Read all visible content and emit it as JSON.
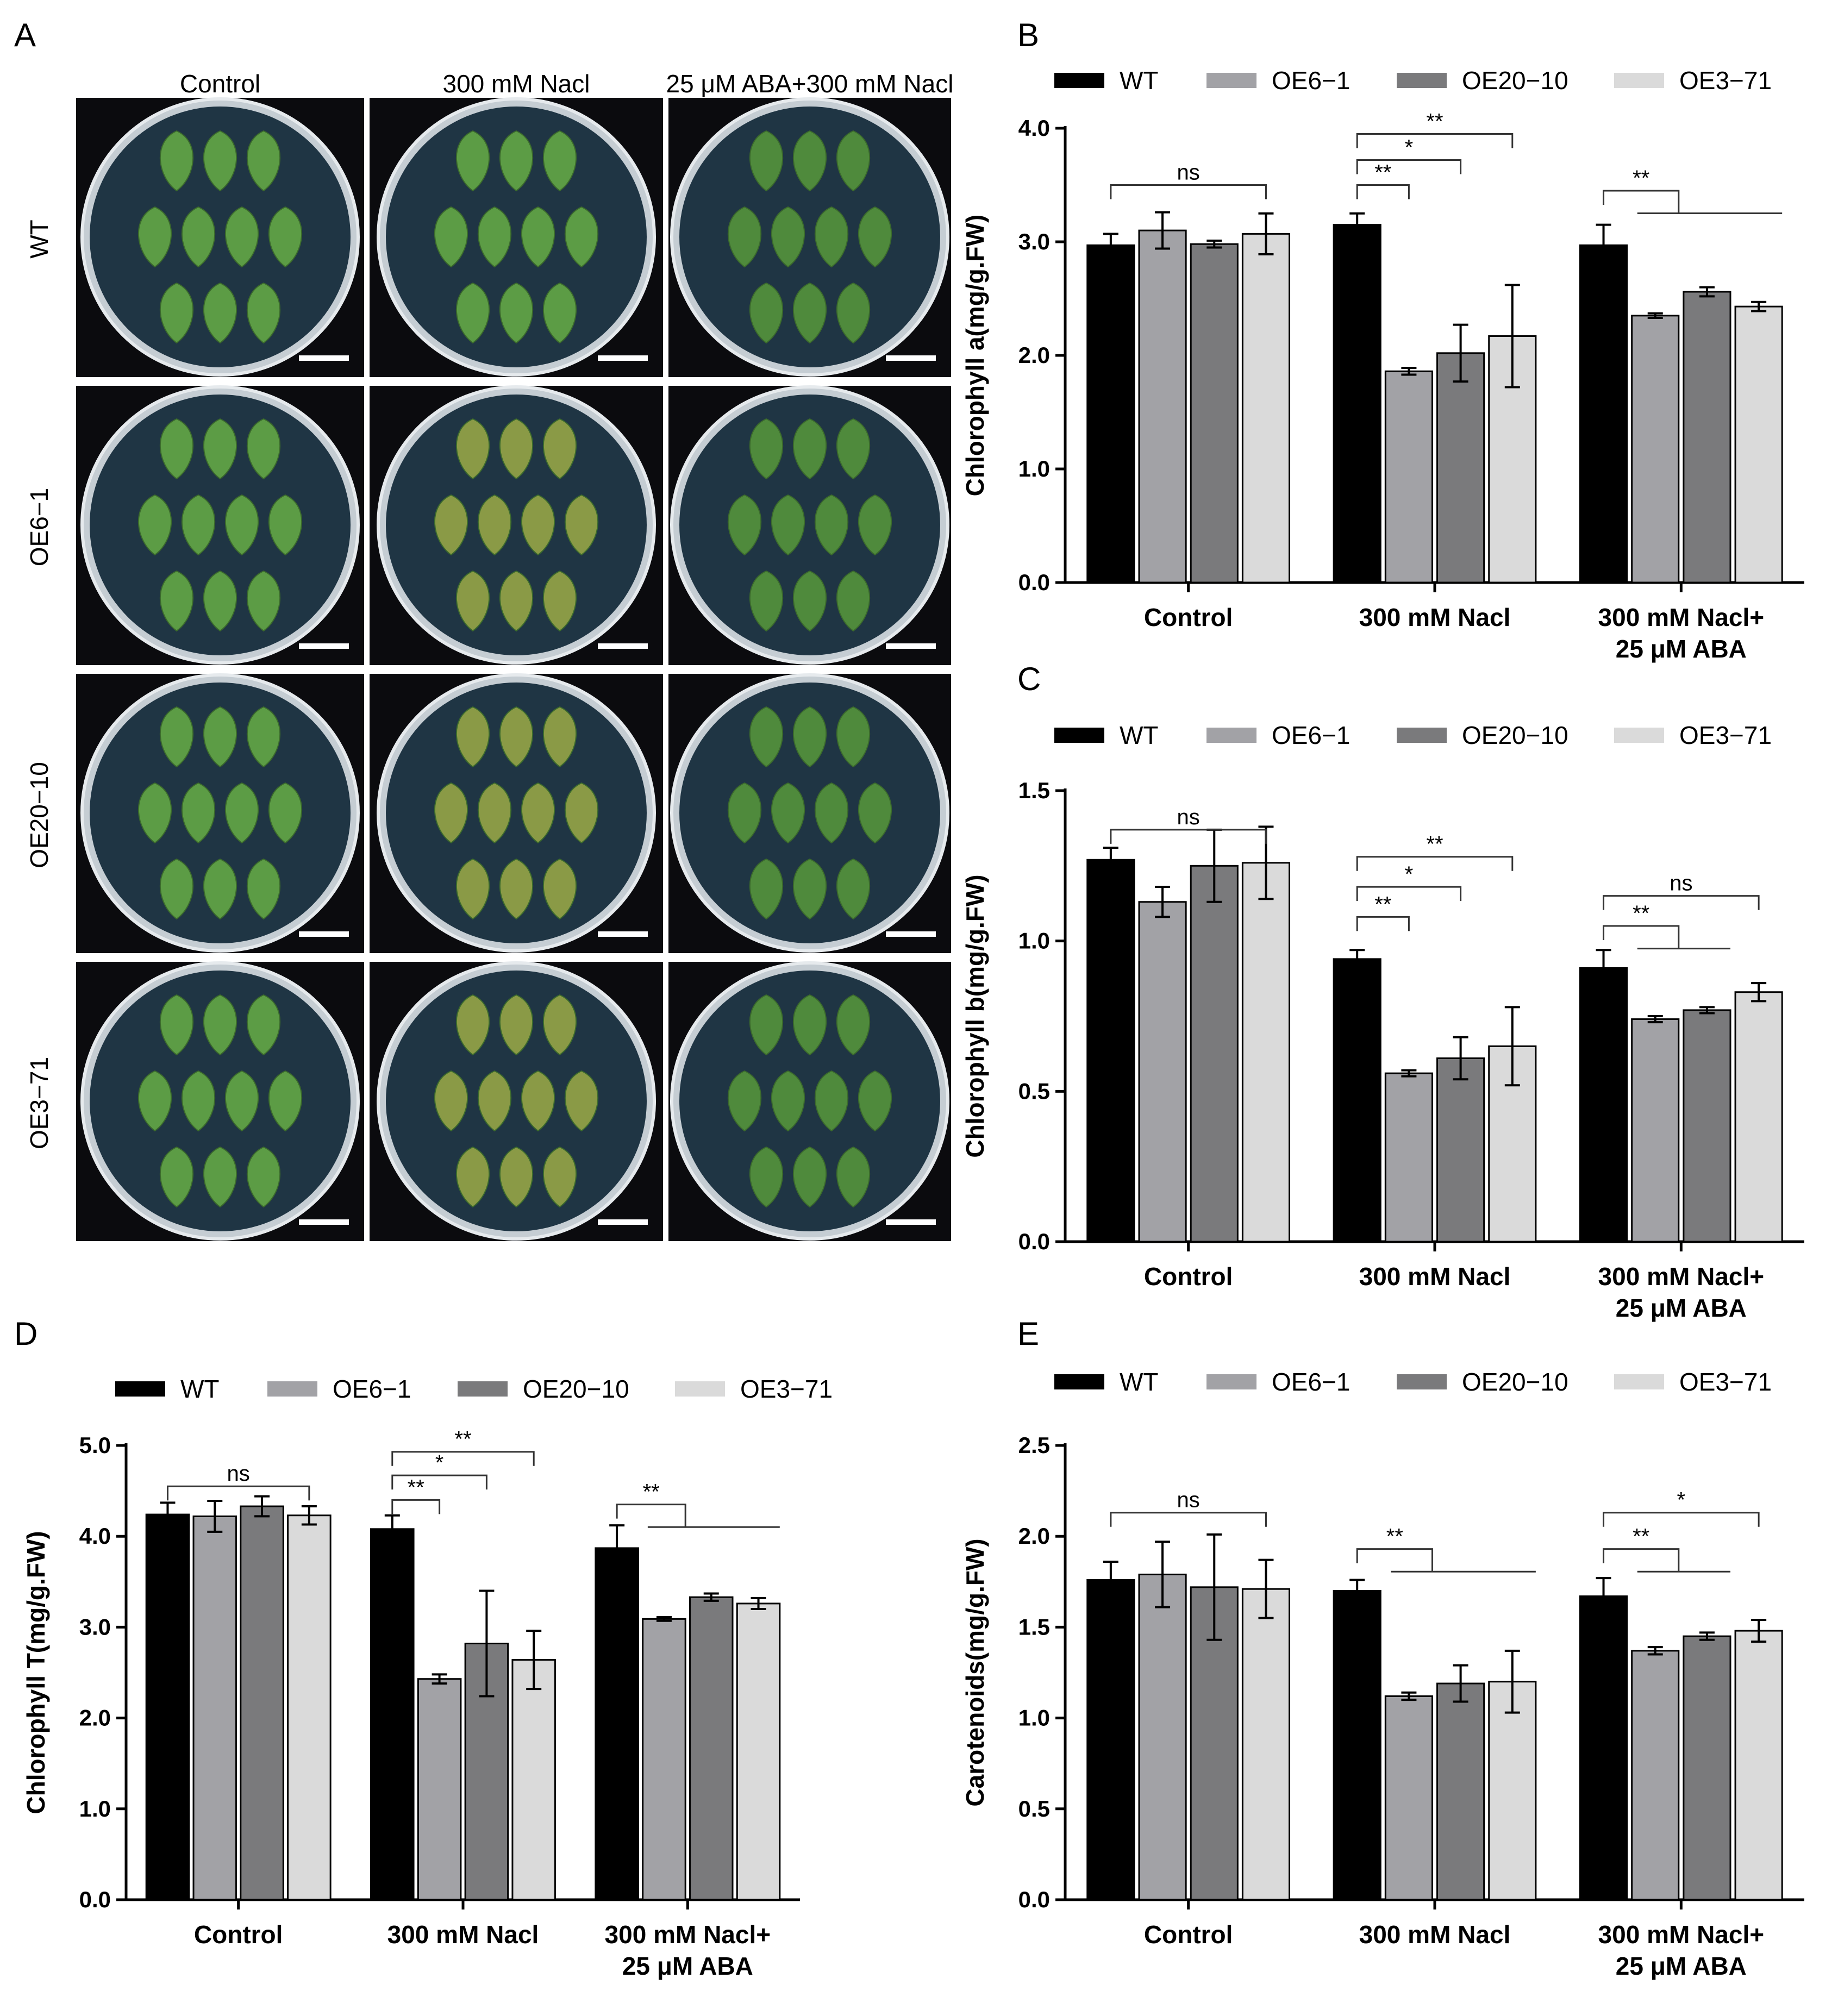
{
  "panel_a": {
    "letter": "A",
    "columns": [
      "Control",
      "300 mM Nacl",
      "25 μM ABA+300 mM Nacl"
    ],
    "rows": [
      "WT",
      "OE6−1",
      "OE20−10",
      "OE3−71"
    ]
  },
  "colors": {
    "WT": "#000000",
    "OE6-1": "#a2a2a6",
    "OE20-10": "#7a7a7c",
    "OE3-71": "#dadada"
  },
  "chart_data": [
    {
      "panel": "B",
      "type": "bar",
      "categories": [
        "Control",
        "300 mM Nacl",
        "300 mM Nacl+\n25 μM ABA"
      ],
      "ylabel": "Chlorophyll a(mg/g.FW)",
      "ylim": [
        0,
        4.0
      ],
      "yticks": [
        "0.0",
        "1.0",
        "2.0",
        "3.0",
        "4.0"
      ],
      "legend": "top",
      "series": [
        {
          "name": "WT",
          "values": [
            2.97,
            3.15,
            2.97
          ],
          "errors": [
            0.1,
            0.1,
            0.18
          ]
        },
        {
          "name": "OE6−1",
          "values": [
            3.1,
            1.86,
            2.35
          ],
          "errors": [
            0.16,
            0.03,
            0.02
          ]
        },
        {
          "name": "OE20−10",
          "values": [
            2.98,
            2.02,
            2.56
          ],
          "errors": [
            0.03,
            0.25,
            0.04
          ]
        },
        {
          "name": "OE3−71",
          "values": [
            3.07,
            2.17,
            2.43
          ],
          "errors": [
            0.18,
            0.45,
            0.04
          ]
        }
      ],
      "annotations": [
        {
          "group": 0,
          "label": "ns",
          "kind": "span",
          "from": 0,
          "to": 3,
          "y": 3.5
        },
        {
          "group": 1,
          "label": "**",
          "kind": "span",
          "from": 0,
          "to": 1,
          "y": 3.5
        },
        {
          "group": 1,
          "label": "*",
          "kind": "span",
          "from": 0,
          "to": 2,
          "y": 3.72
        },
        {
          "group": 1,
          "label": "**",
          "kind": "span",
          "from": 0,
          "to": 3,
          "y": 3.95
        },
        {
          "group": 2,
          "label": "**",
          "kind": "hook",
          "from": 0,
          "to": 3,
          "y": 3.45
        }
      ]
    },
    {
      "panel": "C",
      "type": "bar",
      "categories": [
        "Control",
        "300 mM Nacl",
        "300 mM Nacl+\n25 μM ABA"
      ],
      "ylabel": "Chlorophyll b(mg/g.FW)",
      "ylim": [
        0,
        1.5
      ],
      "yticks": [
        "0.0",
        "0.5",
        "1.0",
        "1.5"
      ],
      "legend": "top",
      "series": [
        {
          "name": "WT",
          "values": [
            1.27,
            0.94,
            0.91
          ],
          "errors": [
            0.04,
            0.03,
            0.06
          ]
        },
        {
          "name": "OE6−1",
          "values": [
            1.13,
            0.56,
            0.74
          ],
          "errors": [
            0.05,
            0.01,
            0.01
          ]
        },
        {
          "name": "OE20−10",
          "values": [
            1.25,
            0.61,
            0.77
          ],
          "errors": [
            0.12,
            0.07,
            0.01
          ]
        },
        {
          "name": "OE3−71",
          "values": [
            1.26,
            0.65,
            0.83
          ],
          "errors": [
            0.12,
            0.13,
            0.03
          ]
        }
      ],
      "annotations": [
        {
          "group": 0,
          "label": "ns",
          "kind": "span",
          "from": 0,
          "to": 3,
          "y": 1.37
        },
        {
          "group": 1,
          "label": "**",
          "kind": "span",
          "from": 0,
          "to": 1,
          "y": 1.08
        },
        {
          "group": 1,
          "label": "*",
          "kind": "span",
          "from": 0,
          "to": 2,
          "y": 1.18
        },
        {
          "group": 1,
          "label": "**",
          "kind": "span",
          "from": 0,
          "to": 3,
          "y": 1.28
        },
        {
          "group": 2,
          "label": "**",
          "kind": "hook",
          "from": 0,
          "to": 2,
          "y": 1.05
        },
        {
          "group": 2,
          "label": "ns",
          "kind": "span",
          "from": 0,
          "to": 3,
          "y": 1.15
        }
      ]
    },
    {
      "panel": "D",
      "type": "bar",
      "categories": [
        "Control",
        "300 mM Nacl",
        "300 mM Nacl+\n25 μM ABA"
      ],
      "ylabel": "Chlorophyll T(mg/g.FW)",
      "ylim": [
        0,
        5.0
      ],
      "yticks": [
        "0.0",
        "1.0",
        "2.0",
        "3.0",
        "4.0",
        "5.0"
      ],
      "legend": "top",
      "series": [
        {
          "name": "WT",
          "values": [
            4.24,
            4.08,
            3.87
          ],
          "errors": [
            0.13,
            0.15,
            0.25
          ]
        },
        {
          "name": "OE6−1",
          "values": [
            4.22,
            2.43,
            3.09
          ],
          "errors": [
            0.17,
            0.05,
            0.02
          ]
        },
        {
          "name": "OE20−10",
          "values": [
            4.33,
            2.82,
            3.33
          ],
          "errors": [
            0.11,
            0.58,
            0.04
          ]
        },
        {
          "name": "OE3−71",
          "values": [
            4.23,
            2.64,
            3.26
          ],
          "errors": [
            0.1,
            0.32,
            0.06
          ]
        }
      ],
      "annotations": [
        {
          "group": 0,
          "label": "ns",
          "kind": "span",
          "from": 0,
          "to": 3,
          "y": 4.55
        },
        {
          "group": 1,
          "label": "**",
          "kind": "span",
          "from": 0,
          "to": 1,
          "y": 4.4
        },
        {
          "group": 1,
          "label": "*",
          "kind": "span",
          "from": 0,
          "to": 2,
          "y": 4.67
        },
        {
          "group": 1,
          "label": "**",
          "kind": "span",
          "from": 0,
          "to": 3,
          "y": 4.93
        },
        {
          "group": 2,
          "label": "**",
          "kind": "hook",
          "from": 0,
          "to": 3,
          "y": 4.35
        }
      ]
    },
    {
      "panel": "E",
      "type": "bar",
      "categories": [
        "Control",
        "300 mM Nacl",
        "300 mM Nacl+\n25 μM ABA"
      ],
      "ylabel": "Carotenoids(mg/g.FW)",
      "ylim": [
        0,
        2.5
      ],
      "yticks": [
        "0.0",
        "0.5",
        "1.0",
        "1.5",
        "2.0",
        "2.5"
      ],
      "legend": "top",
      "series": [
        {
          "name": "WT",
          "values": [
            1.76,
            1.7,
            1.67
          ],
          "errors": [
            0.1,
            0.06,
            0.1
          ]
        },
        {
          "name": "OE6−1",
          "values": [
            1.79,
            1.12,
            1.37
          ],
          "errors": [
            0.18,
            0.02,
            0.02
          ]
        },
        {
          "name": "OE20−10",
          "values": [
            1.72,
            1.19,
            1.45
          ],
          "errors": [
            0.29,
            0.1,
            0.02
          ]
        },
        {
          "name": "OE3−71",
          "values": [
            1.71,
            1.2,
            1.48
          ],
          "errors": [
            0.16,
            0.17,
            0.06
          ]
        }
      ],
      "annotations": [
        {
          "group": 0,
          "label": "ns",
          "kind": "span",
          "from": 0,
          "to": 3,
          "y": 2.13
        },
        {
          "group": 1,
          "label": "**",
          "kind": "hook",
          "from": 0,
          "to": 3,
          "y": 1.93
        },
        {
          "group": 2,
          "label": "**",
          "kind": "hook",
          "from": 0,
          "to": 2,
          "y": 1.93
        },
        {
          "group": 2,
          "label": "*",
          "kind": "span",
          "from": 0,
          "to": 3,
          "y": 2.13
        }
      ]
    }
  ]
}
